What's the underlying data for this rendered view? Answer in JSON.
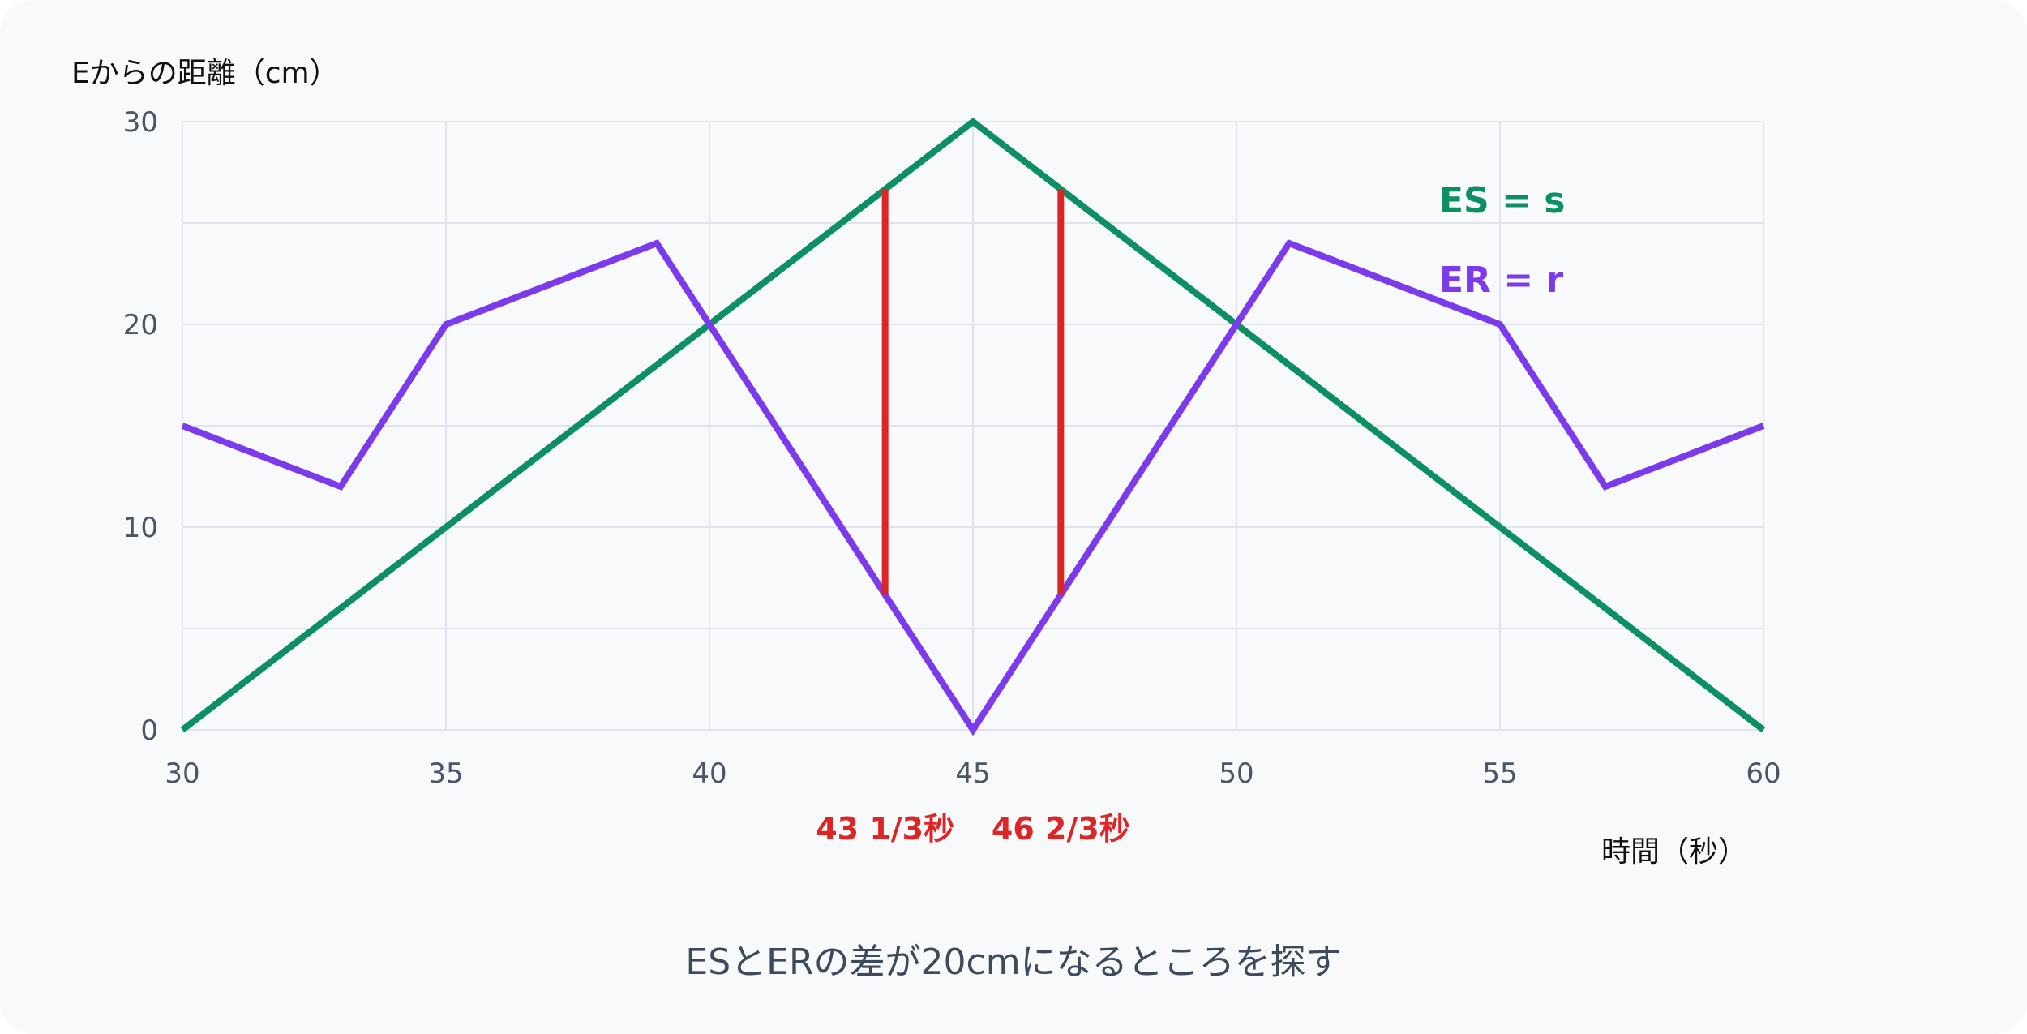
{
  "chart_data": {
    "type": "line",
    "ylabel": "Eからの距離（cm）",
    "xlabel": "時間（秒）",
    "xlim": [
      30,
      60
    ],
    "ylim": [
      0,
      30
    ],
    "x_ticks": [
      30,
      35,
      40,
      45,
      50,
      55,
      60
    ],
    "y_ticks": [
      0,
      10,
      20,
      30
    ],
    "y_minor_grid": [
      5,
      15,
      25
    ],
    "grid": true,
    "series": [
      {
        "name": "ES = s",
        "color": "#0b8f63",
        "points": [
          [
            30,
            0
          ],
          [
            45,
            30
          ],
          [
            60,
            0
          ]
        ]
      },
      {
        "name": "ER = r",
        "color": "#7c3aed",
        "points": [
          [
            30,
            15
          ],
          [
            33,
            12
          ],
          [
            35,
            20
          ],
          [
            39,
            24
          ],
          [
            45,
            0
          ],
          [
            51,
            24
          ],
          [
            55,
            20
          ],
          [
            57,
            12
          ],
          [
            60,
            15
          ]
        ]
      }
    ],
    "annotations": [
      {
        "x": 43.3333,
        "y_from": 6.6667,
        "y_to": 26.6667,
        "label": "43 1/3秒",
        "color": "#dc2626"
      },
      {
        "x": 46.6667,
        "y_from": 6.6667,
        "y_to": 26.6667,
        "label": "46 2/3秒",
        "color": "#dc2626"
      }
    ]
  },
  "caption": "ESとERの差が20cmになるところを探す"
}
